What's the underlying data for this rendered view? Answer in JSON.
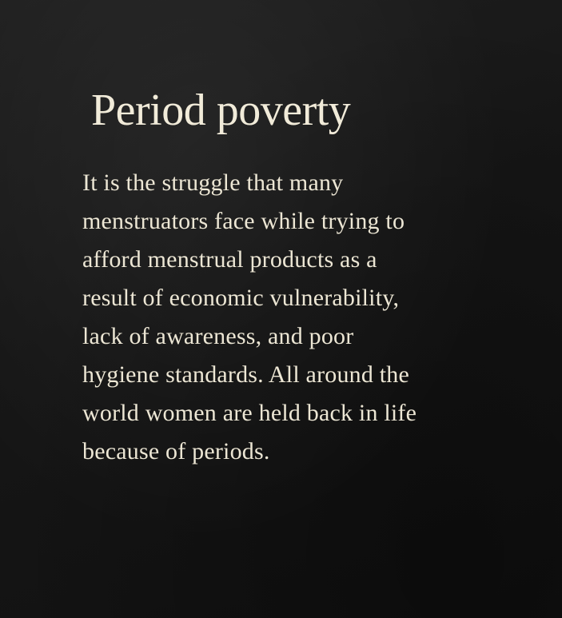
{
  "slide": {
    "title": "Period poverty",
    "body_lines": [
      "It is the struggle that many",
      "menstruators face while trying to",
      "afford menstrual products as a",
      "result of economic vulnerability,",
      "lack of awareness, and poor",
      "hygiene standards. All around the",
      "world women are held back in life",
      "because of periods."
    ]
  },
  "colors": {
    "background": "#161616",
    "text": "#efe9d8"
  }
}
